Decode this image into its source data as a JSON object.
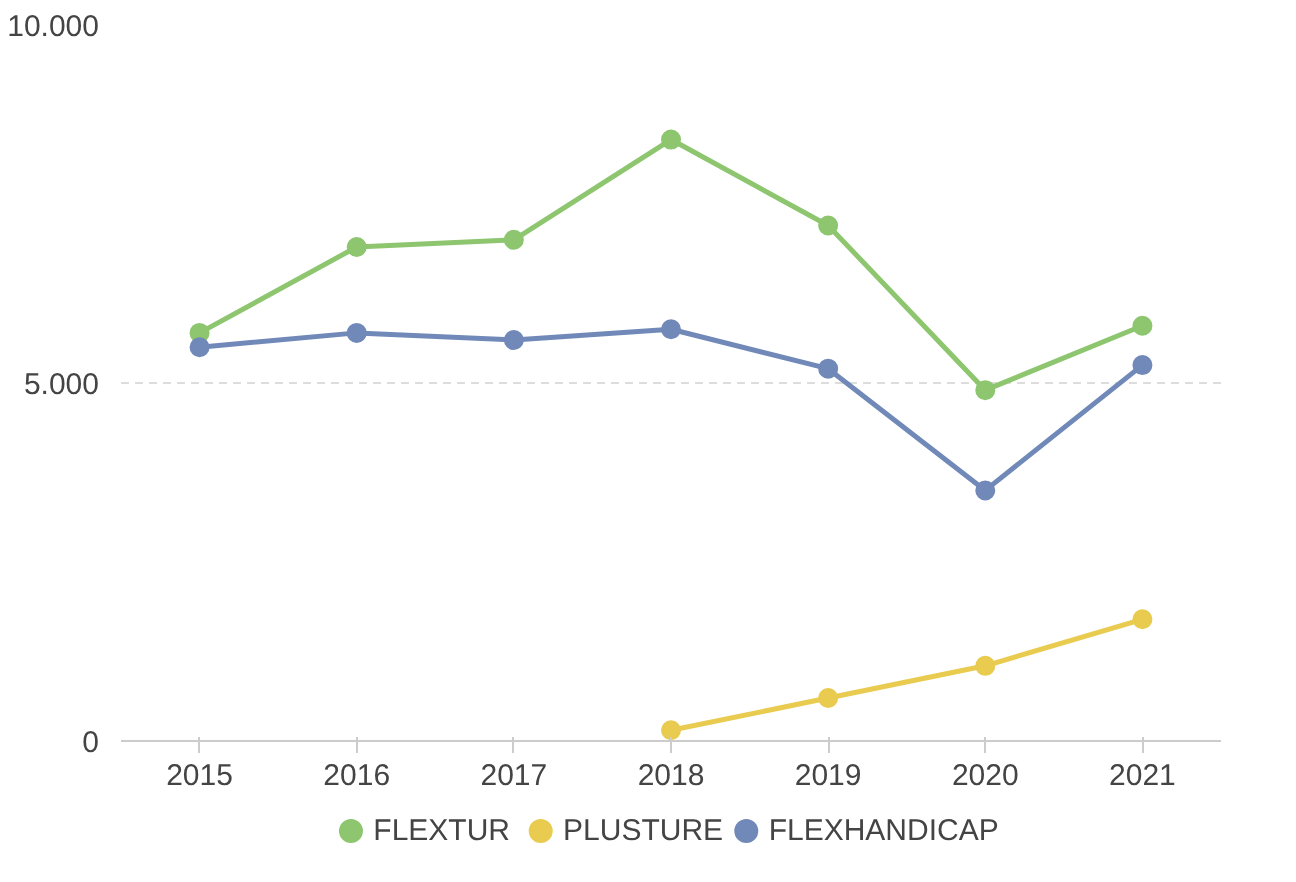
{
  "chart_data": {
    "type": "line",
    "categories": [
      "2015",
      "2016",
      "2017",
      "2018",
      "2019",
      "2020",
      "2021"
    ],
    "series": [
      {
        "name": "FLEXTUR",
        "color": "#8dc66f",
        "values": [
          5700,
          6900,
          7000,
          8400,
          7200,
          4900,
          5800
        ]
      },
      {
        "name": "PLUSTURE",
        "color": "#e8cb4f",
        "values": [
          null,
          null,
          null,
          150,
          600,
          1050,
          1700
        ]
      },
      {
        "name": "FLEXHANDICAP",
        "color": "#7189b8",
        "values": [
          5500,
          5700,
          5600,
          5750,
          5200,
          3500,
          5250
        ]
      }
    ],
    "ylim": [
      0,
      10000
    ],
    "yticks": [
      {
        "value": 0,
        "label": "0"
      },
      {
        "value": 5000,
        "label": "5.000"
      },
      {
        "value": 10000,
        "label": "10.000"
      }
    ],
    "grid": "y",
    "legend": "bottom",
    "marker": "circle",
    "line_style": "solid"
  }
}
